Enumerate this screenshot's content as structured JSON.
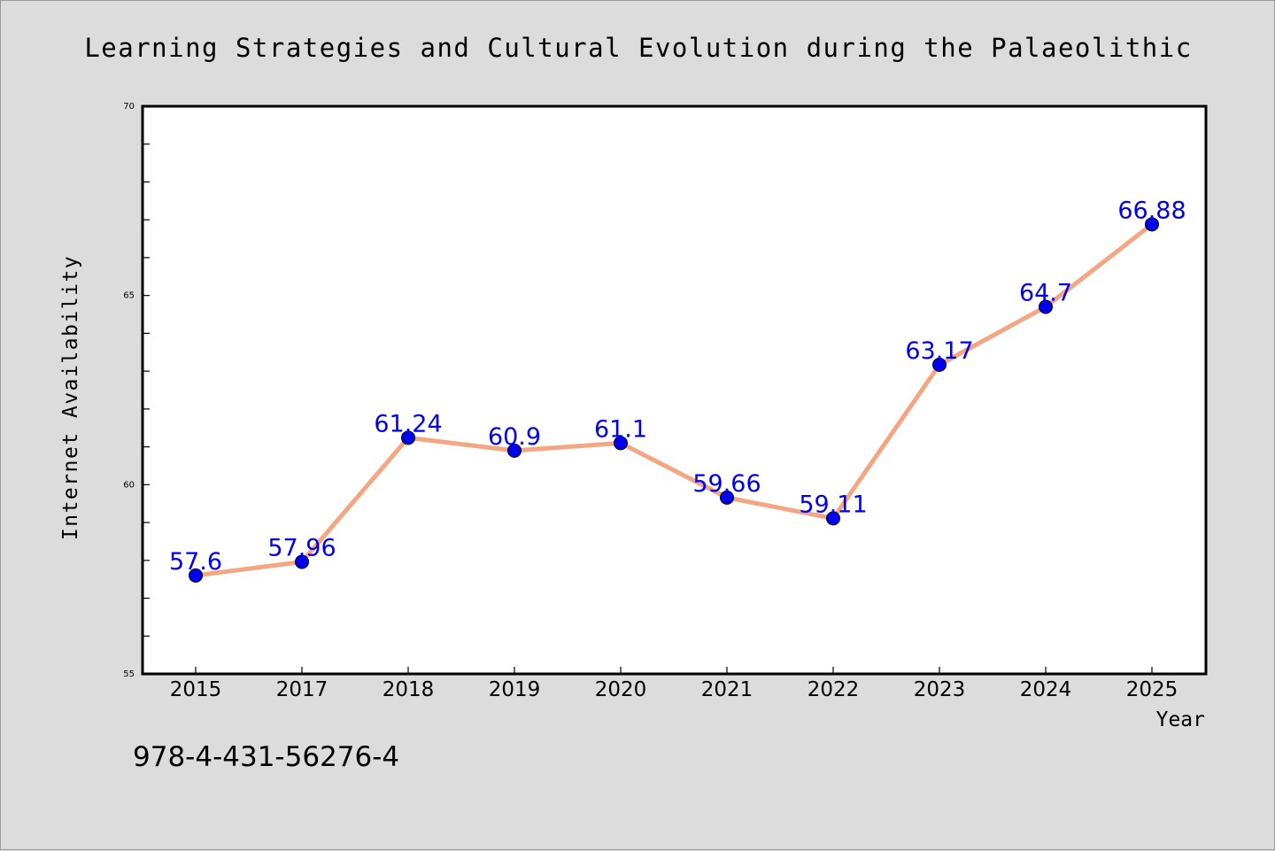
{
  "chart_data": {
    "type": "line",
    "title": "Learning Strategies and Cultural Evolution during the Palaeolithic",
    "xlabel": "Year",
    "ylabel": "Internet Availability",
    "categories": [
      "2015",
      "2017",
      "2018",
      "2019",
      "2020",
      "2021",
      "2022",
      "2023",
      "2024",
      "2025"
    ],
    "series": [
      {
        "values": [
          57.6,
          57.96,
          61.24,
          60.9,
          61.1,
          59.66,
          59.11,
          63.17,
          64.7,
          66.88
        ],
        "labels": [
          "57.6",
          "57.96",
          "61.24",
          "60.9",
          "61.1",
          "59.66",
          "59.11",
          "63.17",
          "64.7",
          "66.88"
        ],
        "line_color": "#f4a582",
        "marker_color": "#0000ee",
        "label_color": "#0000ee"
      }
    ],
    "ylim": [
      55,
      70
    ],
    "y_ticks": [
      "55",
      "60",
      "65",
      "70"
    ],
    "y_minor_step": 1,
    "grid": false,
    "legend": "none"
  },
  "annotation": "978-4-431-56276-4",
  "colors": {
    "background": "#dcdcdc",
    "plot_background": "#ffffff",
    "axis": "#000000"
  }
}
